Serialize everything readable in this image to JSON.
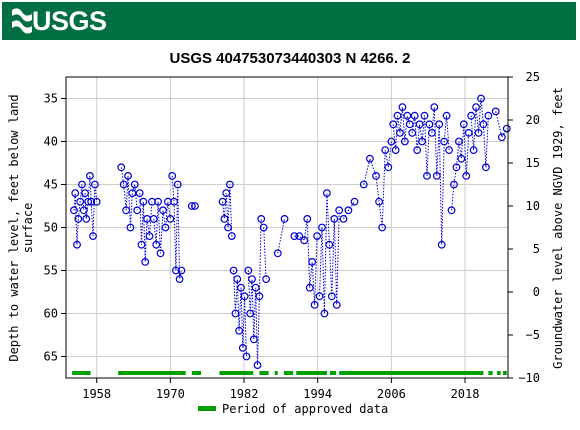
{
  "header": {
    "logo_text": "USGS"
  },
  "chart_data": {
    "type": "scatter",
    "title": "USGS 404753073440303 N  4266. 2",
    "y_left_label_1": "Depth to water level, feet below land",
    "y_left_label_2": "surface",
    "y_right_label": "Groundwater level above NGVD 1929, feet",
    "x_ticks": [
      "1958",
      "1970",
      "1982",
      "1994",
      "2006",
      "2018"
    ],
    "x_tick_years": [
      1958,
      1970,
      1982,
      1994,
      2006,
      2018
    ],
    "xlim": [
      1953,
      2025
    ],
    "y_left_ticks": [
      "35",
      "40",
      "45",
      "50",
      "55",
      "60",
      "65"
    ],
    "y_left_values": [
      35,
      40,
      45,
      50,
      55,
      60,
      65
    ],
    "ylim_left": [
      32.5,
      67.5
    ],
    "ylim_left_note": "inverted",
    "y_right_ticks": [
      "25",
      "20",
      "15",
      "10",
      "5",
      "0",
      "−5",
      "−10"
    ],
    "y_right_values": [
      25,
      20,
      15,
      10,
      5,
      0,
      -5,
      -10
    ],
    "ylim_right": [
      -10,
      25
    ],
    "grid": true,
    "marker_color": "#0000cc",
    "approved_color": "#00a000",
    "legend_label": "Period of approved data",
    "legend_position": "bottom-center",
    "series": [
      {
        "segments": [
          [
            [
              1954.3,
              48
            ],
            [
              1954.5,
              46
            ],
            [
              1954.8,
              52
            ],
            [
              1955.0,
              49
            ],
            [
              1955.3,
              47
            ],
            [
              1955.6,
              45
            ],
            [
              1955.9,
              48
            ]
          ],
          [
            [
              1956.1,
              46
            ],
            [
              1956.3,
              49
            ],
            [
              1956.6,
              47
            ],
            [
              1956.9,
              44
            ],
            [
              1957.1,
              47
            ],
            [
              1957.4,
              51
            ],
            [
              1957.7,
              45
            ],
            [
              1958.0,
              47
            ]
          ],
          [
            [
              1962.0,
              43
            ],
            [
              1962.4,
              45
            ],
            [
              1962.8,
              48
            ],
            [
              1963.1,
              44
            ],
            [
              1963.5,
              50
            ],
            [
              1963.8,
              46
            ],
            [
              1964.2,
              45
            ],
            [
              1964.6,
              48
            ]
          ],
          [
            [
              1965.0,
              46
            ],
            [
              1965.3,
              52
            ],
            [
              1965.6,
              47
            ],
            [
              1965.9,
              54
            ],
            [
              1966.2,
              49
            ],
            [
              1966.6,
              51
            ],
            [
              1967.0,
              47
            ]
          ],
          [
            [
              1967.3,
              49
            ],
            [
              1967.7,
              52
            ],
            [
              1968.0,
              47
            ],
            [
              1968.4,
              53
            ],
            [
              1968.8,
              48
            ],
            [
              1969.2,
              50
            ],
            [
              1969.6,
              47
            ],
            [
              1970.0,
              49
            ]
          ],
          [
            [
              1970.3,
              44
            ],
            [
              1970.6,
              47
            ],
            [
              1970.9,
              55
            ],
            [
              1971.2,
              45
            ],
            [
              1971.5,
              56
            ],
            [
              1971.8,
              55
            ]
          ],
          [
            [
              1973.5,
              47.5
            ],
            [
              1974.0,
              47.5
            ]
          ],
          [
            [
              1978.5,
              47
            ],
            [
              1978.8,
              49
            ],
            [
              1979.1,
              46
            ],
            [
              1979.4,
              50
            ],
            [
              1979.7,
              45
            ],
            [
              1980.0,
              51
            ]
          ],
          [
            [
              1980.3,
              55
            ],
            [
              1980.6,
              60
            ],
            [
              1980.9,
              56
            ],
            [
              1981.2,
              62
            ],
            [
              1981.5,
              57
            ],
            [
              1981.8,
              64
            ],
            [
              1982.1,
              58
            ],
            [
              1982.4,
              65
            ]
          ],
          [
            [
              1982.7,
              55
            ],
            [
              1983.0,
              60
            ],
            [
              1983.3,
              56
            ],
            [
              1983.6,
              63
            ],
            [
              1983.9,
              57
            ],
            [
              1984.2,
              66
            ],
            [
              1984.5,
              58
            ],
            [
              1984.8,
              49
            ]
          ],
          [
            [
              1985.2,
              50
            ],
            [
              1985.6,
              56
            ]
          ],
          [
            [
              1987.5,
              53
            ],
            [
              1988.6,
              49
            ]
          ],
          [
            [
              1990.2,
              51
            ],
            [
              1991.0,
              51
            ],
            [
              1991.8,
              51.5
            ],
            [
              1992.3,
              49
            ],
            [
              1992.7,
              57
            ],
            [
              1993.1,
              54
            ],
            [
              1993.5,
              59
            ],
            [
              1993.9,
              51
            ]
          ],
          [
            [
              1994.3,
              58
            ],
            [
              1994.7,
              50
            ],
            [
              1995.1,
              60
            ],
            [
              1995.5,
              46
            ],
            [
              1995.9,
              52
            ],
            [
              1996.3,
              58
            ],
            [
              1996.7,
              49
            ],
            [
              1997.1,
              59
            ],
            [
              1997.5,
              48
            ]
          ],
          [
            [
              1998.2,
              49
            ],
            [
              1999.0,
              48
            ],
            [
              2000.0,
              47
            ]
          ],
          [
            [
              2001.5,
              45
            ],
            [
              2002.5,
              42
            ],
            [
              2003.5,
              44
            ],
            [
              2004.0,
              47
            ],
            [
              2004.5,
              50
            ],
            [
              2005.0,
              41
            ],
            [
              2005.5,
              43
            ],
            [
              2006.0,
              40
            ]
          ],
          [
            [
              2006.3,
              38
            ],
            [
              2006.7,
              41
            ],
            [
              2007.0,
              37
            ],
            [
              2007.4,
              39
            ],
            [
              2007.8,
              36
            ],
            [
              2008.2,
              40
            ],
            [
              2008.6,
              37
            ],
            [
              2009.0,
              38
            ]
          ],
          [
            [
              2009.4,
              39
            ],
            [
              2009.8,
              37
            ],
            [
              2010.2,
              41
            ],
            [
              2010.6,
              38
            ],
            [
              2011.0,
              40
            ],
            [
              2011.4,
              37
            ],
            [
              2011.8,
              44
            ],
            [
              2012.2,
              38
            ]
          ],
          [
            [
              2012.6,
              39
            ],
            [
              2013.0,
              36
            ],
            [
              2013.4,
              44
            ],
            [
              2013.8,
              38
            ],
            [
              2014.2,
              52
            ],
            [
              2014.6,
              40
            ],
            [
              2015.0,
              37
            ],
            [
              2015.4,
              41
            ]
          ],
          [
            [
              2015.8,
              48
            ],
            [
              2016.2,
              45
            ],
            [
              2016.6,
              43
            ],
            [
              2017.0,
              40
            ],
            [
              2017.4,
              42
            ],
            [
              2017.8,
              38
            ],
            [
              2018.2,
              44
            ],
            [
              2018.6,
              39
            ]
          ],
          [
            [
              2019.0,
              37
            ],
            [
              2019.4,
              41
            ],
            [
              2019.8,
              36
            ],
            [
              2020.2,
              39
            ],
            [
              2020.6,
              35
            ],
            [
              2021.0,
              38
            ],
            [
              2021.4,
              43
            ],
            [
              2021.8,
              37
            ]
          ],
          [
            [
              2023.0,
              36.5
            ],
            [
              2024.0,
              39.5
            ],
            [
              2024.8,
              38.5
            ]
          ]
        ]
      }
    ],
    "approved_periods": [
      [
        1954.0,
        1957.0
      ],
      [
        1961.5,
        1972.5
      ],
      [
        1973.5,
        1975.0
      ],
      [
        1978.0,
        1983.5
      ],
      [
        1984.5,
        1986.0
      ],
      [
        1987.0,
        1987.5
      ],
      [
        1988.5,
        1990.0
      ],
      [
        1990.5,
        1995.5
      ],
      [
        1996.0,
        1997.0
      ],
      [
        1997.5,
        1998.5
      ],
      [
        1998.5,
        2021.0
      ],
      [
        2021.8,
        2022.5
      ],
      [
        2023.2,
        2023.8
      ],
      [
        2024.2,
        2024.8
      ]
    ]
  }
}
